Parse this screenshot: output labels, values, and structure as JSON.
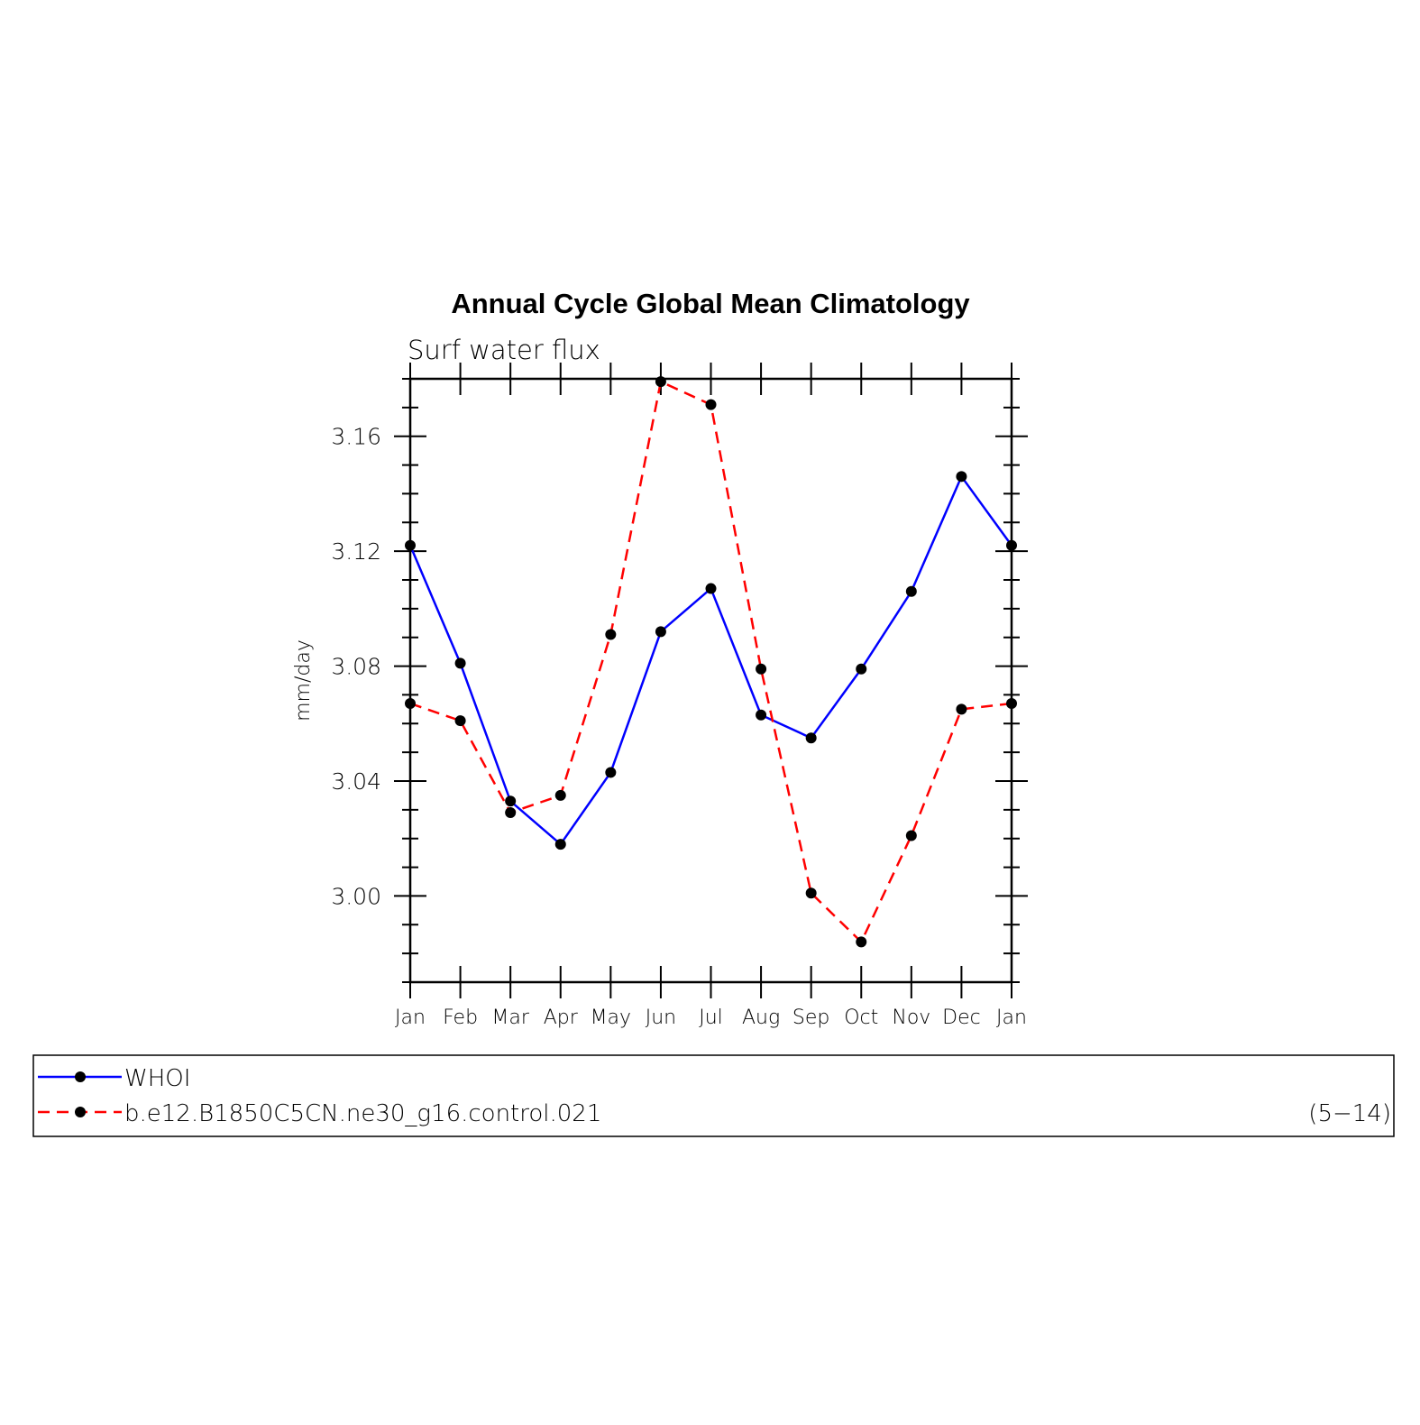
{
  "chart_data": {
    "type": "line",
    "title": "Annual Cycle Global Mean Climatology",
    "subtitle": "Surf water flux",
    "xlabel": "",
    "ylabel": "mm/day",
    "categories": [
      "Jan",
      "Feb",
      "Mar",
      "Apr",
      "May",
      "Jun",
      "Jul",
      "Aug",
      "Sep",
      "Oct",
      "Nov",
      "Dec",
      "Jan"
    ],
    "yticks": [
      "3.00",
      "3.04",
      "3.08",
      "3.12",
      "3.16"
    ],
    "ylim": [
      2.97,
      3.18
    ],
    "grid": false,
    "legend_position": "bottom",
    "series": [
      {
        "name": "WHOI",
        "color": "#0000ff",
        "line_style": "solid",
        "values": [
          3.122,
          3.081,
          3.033,
          3.018,
          3.043,
          3.092,
          3.107,
          3.063,
          3.055,
          3.079,
          3.106,
          3.146,
          3.122
        ]
      },
      {
        "name": "b.e12.B1850C5CN.ne30_g16.control.021",
        "color": "#ff0000",
        "line_style": "dashed",
        "values": [
          3.067,
          3.061,
          3.029,
          3.035,
          3.091,
          3.179,
          3.171,
          3.079,
          3.001,
          2.984,
          3.021,
          3.065,
          3.067
        ]
      }
    ],
    "annotations": [
      "(5−14)"
    ]
  }
}
